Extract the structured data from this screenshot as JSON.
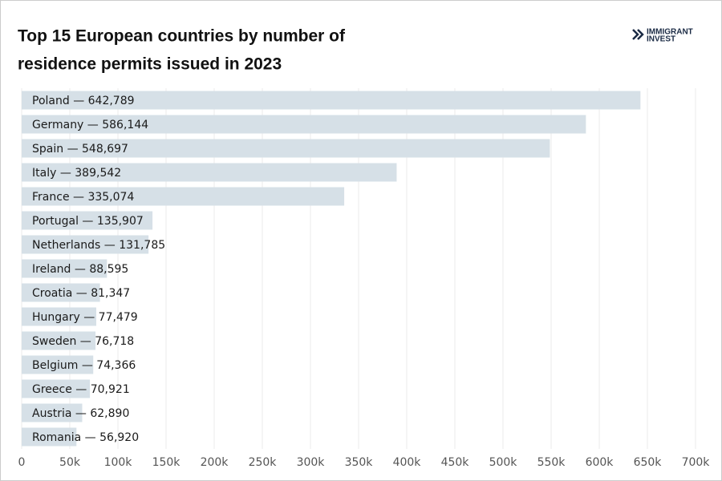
{
  "chart_data": {
    "type": "barh",
    "title": "Top 15 European countries by number of residence permits issued in 2023",
    "logo": [
      "IMMIGRANT",
      "INVEST"
    ],
    "categories": [
      "Poland — 642,789",
      "Germany — 586,144",
      "Spain — 548,697",
      "Italy — 389,542",
      "France — 335,074",
      "Portugal — 135,907",
      "Netherlands — 131,785",
      "Ireland — 88,595",
      "Croatia — 81,347",
      "Hungary — 77,479",
      "Sweden — 76,718",
      "Belgium — 74,366",
      "Greece — 70,921",
      "Austria — 62,890",
      "Romania — 56,920"
    ],
    "values": [
      642789,
      586144,
      548697,
      389542,
      335074,
      135907,
      131785,
      88595,
      81347,
      77479,
      76718,
      74366,
      70921,
      62890,
      56920
    ],
    "color": "#d6e0e7",
    "xlim": [
      0,
      700000
    ],
    "xticks": [
      0,
      {
        "value": 50000,
        "label": "50k"
      },
      {
        "value": 100000,
        "label": "100k"
      },
      {
        "value": 150000,
        "label": "150k"
      },
      {
        "value": 200000,
        "label": "200k"
      },
      {
        "value": 250000,
        "label": "250k"
      },
      {
        "value": 300000,
        "label": "300k"
      },
      {
        "value": 350000,
        "label": "350k"
      },
      {
        "value": 400000,
        "label": "400k"
      },
      {
        "value": 450000,
        "label": "450k"
      },
      {
        "value": 500000,
        "label": "500k"
      },
      {
        "value": 550000,
        "label": "550k"
      },
      {
        "value": 600000,
        "label": "600k"
      },
      {
        "value": 650000,
        "label": "650k"
      },
      {
        "value": 700000,
        "label": "700k"
      }
    ],
    "grid": true
  }
}
